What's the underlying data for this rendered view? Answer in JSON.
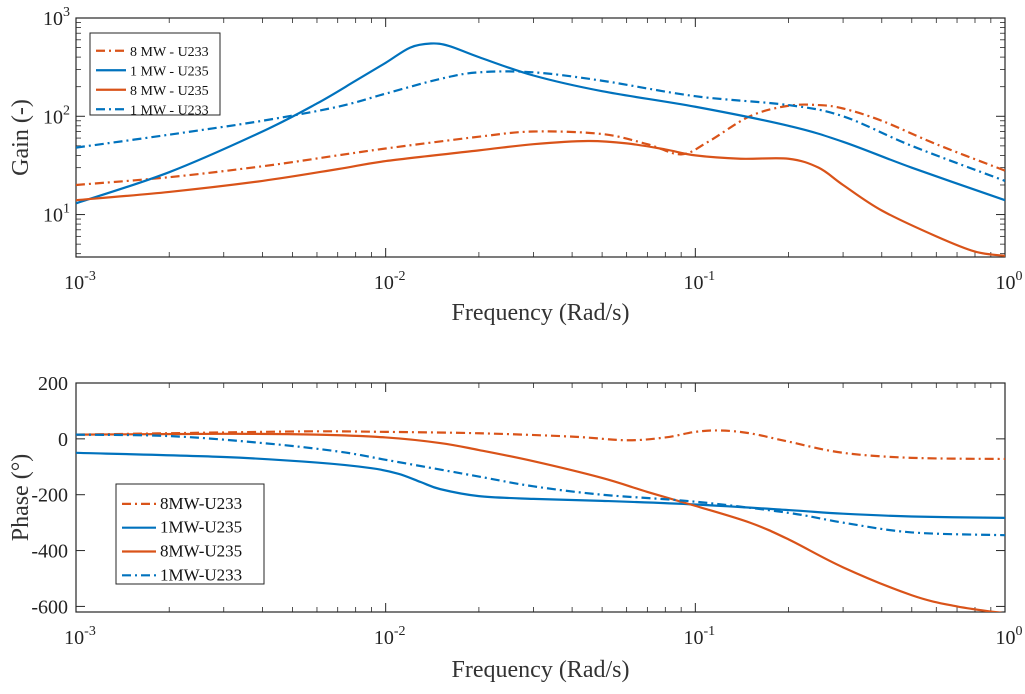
{
  "chart_data": [
    {
      "type": "line",
      "title": "",
      "xlabel": "Frequency (Rad/s)",
      "ylabel": "Gain (-)",
      "xscale": "log",
      "yscale": "log",
      "xlim": [
        0.001,
        1
      ],
      "ylim": [
        3.7,
        1000
      ],
      "xticks": [
        0.001,
        0.01,
        0.1,
        1
      ],
      "yticks": [
        10,
        100,
        1000
      ],
      "grid": false,
      "legend_position": "top-left",
      "series": [
        {
          "name": "8 MW - U233",
          "color": "#D95319",
          "style": "dashdot",
          "x": [
            0.001,
            0.002,
            0.004,
            0.007,
            0.01,
            0.02,
            0.03,
            0.05,
            0.07,
            0.09,
            0.11,
            0.15,
            0.2,
            0.25,
            0.3,
            0.4,
            0.6,
            1.0
          ],
          "y": [
            20,
            24,
            31,
            40,
            47,
            62,
            70,
            66,
            52,
            41,
            55,
            100,
            128,
            130,
            120,
            90,
            52,
            28
          ]
        },
        {
          "name": "1 MW - U235",
          "color": "#0072BD",
          "style": "solid",
          "x": [
            0.001,
            0.002,
            0.004,
            0.006,
            0.008,
            0.01,
            0.012,
            0.014,
            0.016,
            0.02,
            0.03,
            0.05,
            0.1,
            0.2,
            0.3,
            0.5,
            1.0
          ],
          "y": [
            13,
            27,
            70,
            135,
            230,
            350,
            500,
            550,
            520,
            400,
            260,
            180,
            125,
            80,
            55,
            30,
            14
          ]
        },
        {
          "name": "8 MW - U235",
          "color": "#D95319",
          "style": "solid",
          "x": [
            0.001,
            0.002,
            0.004,
            0.007,
            0.01,
            0.02,
            0.03,
            0.045,
            0.06,
            0.08,
            0.1,
            0.14,
            0.2,
            0.25,
            0.3,
            0.4,
            0.6,
            0.8,
            1.0
          ],
          "y": [
            14,
            17,
            22,
            29,
            35,
            45,
            52,
            56,
            53,
            46,
            40,
            37,
            37,
            30,
            20,
            11,
            6,
            4.2,
            3.8
          ]
        },
        {
          "name": "1 MW - U233",
          "color": "#0072BD",
          "style": "dashdot",
          "x": [
            0.001,
            0.002,
            0.004,
            0.007,
            0.01,
            0.015,
            0.02,
            0.03,
            0.05,
            0.1,
            0.2,
            0.3,
            0.5,
            1.0
          ],
          "y": [
            48,
            65,
            90,
            125,
            170,
            240,
            280,
            280,
            230,
            160,
            130,
            100,
            50,
            22
          ]
        }
      ]
    },
    {
      "type": "line",
      "title": "",
      "xlabel": "Frequency (Rad/s)",
      "ylabel": "Phase (°)",
      "xscale": "log",
      "yscale": "linear",
      "xlim": [
        0.001,
        1
      ],
      "ylim": [
        -620,
        200
      ],
      "xticks": [
        0.001,
        0.01,
        0.1,
        1
      ],
      "yticks": [
        200,
        0,
        -200,
        -400,
        -600
      ],
      "grid": false,
      "legend_position": "bottom-left",
      "series": [
        {
          "name": "8MW-U233",
          "color": "#D95319",
          "style": "dashdot",
          "x": [
            0.001,
            0.003,
            0.006,
            0.01,
            0.02,
            0.04,
            0.06,
            0.08,
            0.1,
            0.12,
            0.15,
            0.2,
            0.3,
            0.5,
            1.0
          ],
          "y": [
            15,
            23,
            27,
            25,
            20,
            8,
            -5,
            5,
            25,
            30,
            20,
            -10,
            -50,
            -68,
            -72
          ]
        },
        {
          "name": "1MW-U235",
          "color": "#0072BD",
          "style": "solid",
          "x": [
            0.001,
            0.003,
            0.006,
            0.009,
            0.011,
            0.013,
            0.015,
            0.02,
            0.03,
            0.05,
            0.1,
            0.2,
            0.3,
            0.5,
            1.0
          ],
          "y": [
            -50,
            -65,
            -85,
            -105,
            -125,
            -155,
            -180,
            -205,
            -215,
            -222,
            -235,
            -255,
            -268,
            -278,
            -283
          ]
        },
        {
          "name": "8MW-U235",
          "color": "#D95319",
          "style": "solid",
          "x": [
            0.001,
            0.003,
            0.006,
            0.01,
            0.015,
            0.02,
            0.03,
            0.05,
            0.07,
            0.1,
            0.15,
            0.2,
            0.3,
            0.5,
            0.7,
            1.0
          ],
          "y": [
            15,
            18,
            15,
            5,
            -15,
            -40,
            -80,
            -140,
            -190,
            -240,
            -300,
            -360,
            -460,
            -560,
            -600,
            -625
          ]
        },
        {
          "name": "1MW-U233",
          "color": "#0072BD",
          "style": "dashdot",
          "x": [
            0.001,
            0.002,
            0.004,
            0.007,
            0.01,
            0.015,
            0.02,
            0.03,
            0.05,
            0.1,
            0.2,
            0.3,
            0.5,
            1.0
          ],
          "y": [
            15,
            10,
            -15,
            -45,
            -75,
            -110,
            -135,
            -170,
            -200,
            -225,
            -265,
            -300,
            -335,
            -345
          ]
        }
      ]
    }
  ]
}
